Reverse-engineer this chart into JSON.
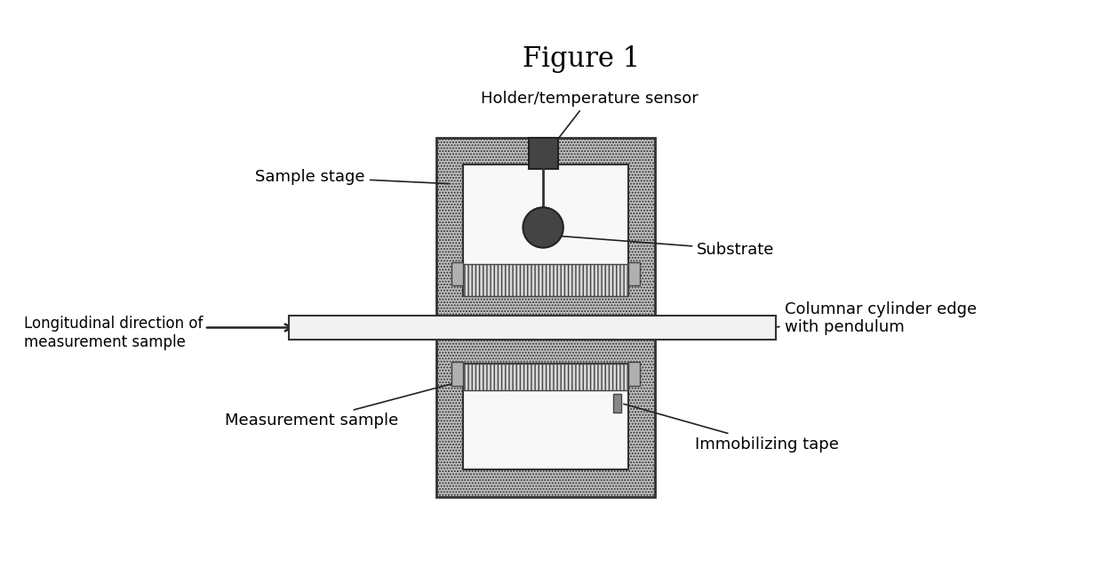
{
  "title": "Figure 1",
  "title_fontsize": 22,
  "label_fontsize": 13,
  "bg_color": "#ffffff",
  "labels": {
    "title": "Figure 1",
    "holder": "Holder/temperature sensor",
    "sample_stage": "Sample stage",
    "substrate": "Substrate",
    "longitudinal": "Longitudinal direction of\nmeasurement sample",
    "columnar": "Columnar cylinder edge\nwith pendulum",
    "measurement": "Measurement sample",
    "immobilizing": "Immobilizing tape"
  }
}
